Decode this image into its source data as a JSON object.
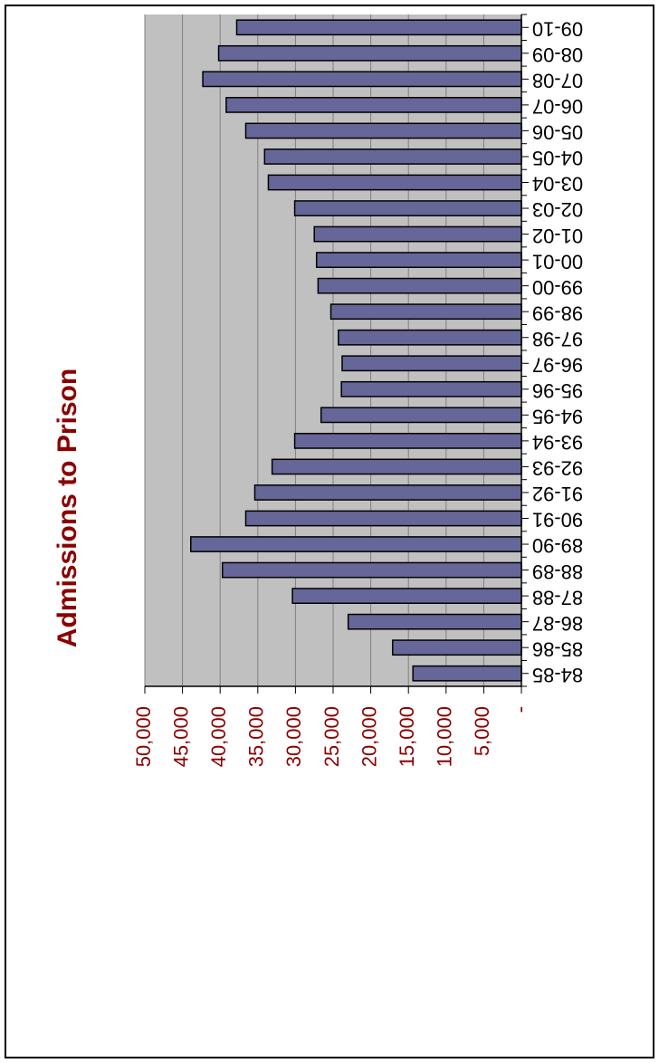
{
  "chart_data": {
    "type": "bar",
    "orientation": "horizontal",
    "title": "Admissions to Prison",
    "xlabel": "",
    "ylabel": "",
    "categories": [
      "84-85",
      "85-86",
      "86-87",
      "87-88",
      "88-89",
      "89-90",
      "90-91",
      "91-92",
      "92-93",
      "93-94",
      "94-95",
      "95-96",
      "96-97",
      "97-98",
      "98-99",
      "99-00",
      "00-01",
      "01-02",
      "02-03",
      "03-04",
      "04-05",
      "05-06",
      "06-07",
      "07-08",
      "08-09",
      "09-10"
    ],
    "values": [
      14400,
      17100,
      23000,
      30400,
      39700,
      43900,
      36600,
      35400,
      33100,
      30100,
      26600,
      23900,
      23800,
      24300,
      25300,
      27000,
      27200,
      27500,
      30100,
      33600,
      34100,
      36600,
      39200,
      42300,
      40200,
      37800
    ],
    "value_axis": {
      "range": [
        0,
        50000
      ],
      "tick_labels": [
        "-",
        "5,000",
        "10,000",
        "15,000",
        "20,000",
        "25,000",
        "30,000",
        "35,000",
        "40,000",
        "45,000",
        "50,000"
      ]
    },
    "grid": true,
    "legend": "none",
    "rotation": "image rotated 90 degrees clockwise (chart reads sideways)"
  },
  "colors": {
    "bar_fill": "#666699",
    "plot_bg": "#C0C0C0",
    "title": "#8B0000",
    "value_labels": "#8B0000",
    "gridline": "#808080"
  }
}
